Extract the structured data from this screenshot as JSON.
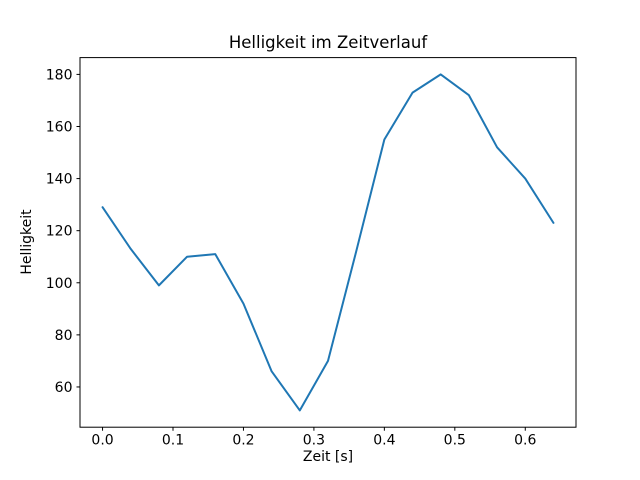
{
  "chart_data": {
    "type": "line",
    "title": "Helligkeit im Zeitverlauf",
    "xlabel": "Zeit [s]",
    "ylabel": "Helligkeit",
    "x": [
      0.0,
      0.04,
      0.08,
      0.12,
      0.16,
      0.2,
      0.24,
      0.28,
      0.32,
      0.36,
      0.4,
      0.44,
      0.48,
      0.52,
      0.56,
      0.6,
      0.64
    ],
    "y": [
      129,
      113,
      99,
      110,
      111,
      92,
      66,
      51,
      70,
      112,
      155,
      173,
      180,
      172,
      152,
      140,
      123
    ],
    "xlim": [
      -0.032,
      0.672
    ],
    "ylim": [
      44.55,
      186.45
    ],
    "xtick_values": [
      0.0,
      0.1,
      0.2,
      0.3,
      0.4,
      0.5,
      0.6
    ],
    "xtick_labels": [
      "0.0",
      "0.1",
      "0.2",
      "0.3",
      "0.4",
      "0.5",
      "0.6"
    ],
    "ytick_values": [
      60,
      80,
      100,
      120,
      140,
      160,
      180
    ],
    "ytick_labels": [
      "60",
      "80",
      "100",
      "120",
      "140",
      "160",
      "180"
    ],
    "line_color": "#1f77b4",
    "axis_color": "#000000",
    "background": "#ffffff",
    "grid": false,
    "legend_position": "none"
  }
}
